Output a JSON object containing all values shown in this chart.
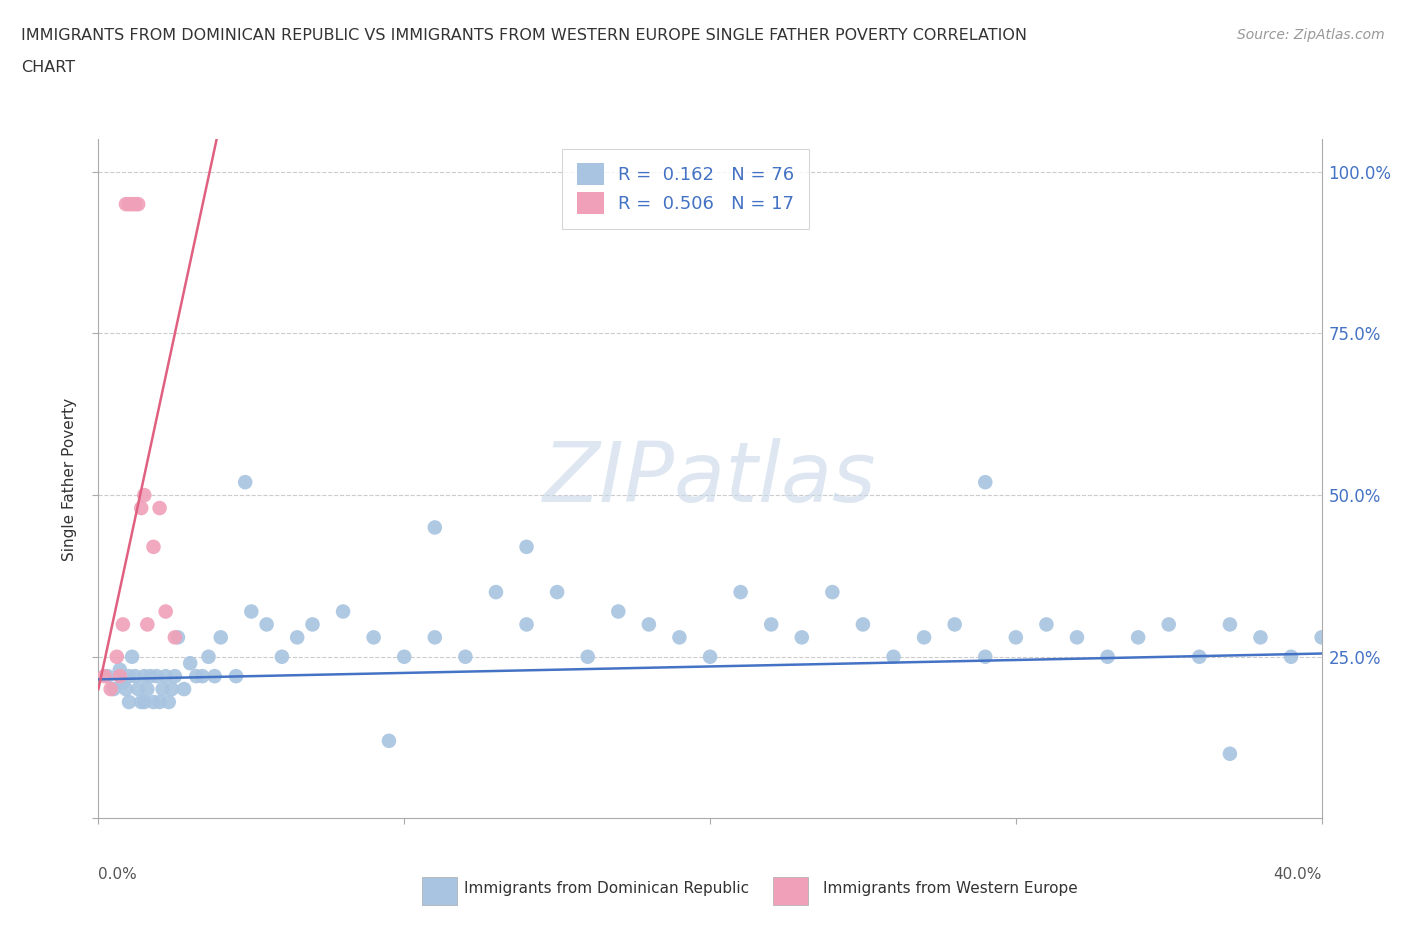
{
  "title_line1": "IMMIGRANTS FROM DOMINICAN REPUBLIC VS IMMIGRANTS FROM WESTERN EUROPE SINGLE FATHER POVERTY CORRELATION",
  "title_line2": "CHART",
  "source": "Source: ZipAtlas.com",
  "ylabel": "Single Father Poverty",
  "xlabel_blue": "Immigrants from Dominican Republic",
  "xlabel_pink": "Immigrants from Western Europe",
  "xlim": [
    0.0,
    0.4
  ],
  "ylim": [
    0.0,
    1.05
  ],
  "R_blue": 0.162,
  "N_blue": 76,
  "R_pink": 0.506,
  "N_pink": 17,
  "blue_color": "#a8c4e0",
  "pink_color": "#f0a0b8",
  "line_blue": "#4472c4",
  "line_pink": "#e06080",
  "blue_line_intercept": 0.215,
  "blue_line_slope": 0.1,
  "pink_line_intercept": 0.2,
  "pink_line_slope": 22.0,
  "blue_scatter_x": [
    0.003,
    0.005,
    0.007,
    0.008,
    0.009,
    0.01,
    0.01,
    0.011,
    0.012,
    0.013,
    0.014,
    0.015,
    0.015,
    0.016,
    0.017,
    0.018,
    0.019,
    0.02,
    0.021,
    0.022,
    0.023,
    0.024,
    0.025,
    0.026,
    0.028,
    0.03,
    0.032,
    0.034,
    0.036,
    0.038,
    0.04,
    0.045,
    0.05,
    0.055,
    0.06,
    0.065,
    0.07,
    0.08,
    0.09,
    0.1,
    0.11,
    0.12,
    0.13,
    0.14,
    0.15,
    0.16,
    0.17,
    0.18,
    0.19,
    0.2,
    0.21,
    0.22,
    0.23,
    0.24,
    0.25,
    0.26,
    0.27,
    0.28,
    0.29,
    0.3,
    0.31,
    0.32,
    0.33,
    0.34,
    0.35,
    0.36,
    0.37,
    0.38,
    0.39,
    0.4,
    0.048,
    0.11,
    0.14,
    0.29,
    0.37,
    0.095
  ],
  "blue_scatter_y": [
    0.22,
    0.2,
    0.23,
    0.21,
    0.2,
    0.22,
    0.18,
    0.25,
    0.22,
    0.2,
    0.18,
    0.22,
    0.18,
    0.2,
    0.22,
    0.18,
    0.22,
    0.18,
    0.2,
    0.22,
    0.18,
    0.2,
    0.22,
    0.28,
    0.2,
    0.24,
    0.22,
    0.22,
    0.25,
    0.22,
    0.28,
    0.22,
    0.32,
    0.3,
    0.25,
    0.28,
    0.3,
    0.32,
    0.28,
    0.25,
    0.28,
    0.25,
    0.35,
    0.3,
    0.35,
    0.25,
    0.32,
    0.3,
    0.28,
    0.25,
    0.35,
    0.3,
    0.28,
    0.35,
    0.3,
    0.25,
    0.28,
    0.3,
    0.25,
    0.28,
    0.3,
    0.28,
    0.25,
    0.28,
    0.3,
    0.25,
    0.3,
    0.28,
    0.25,
    0.28,
    0.52,
    0.45,
    0.42,
    0.52,
    0.1,
    0.12
  ],
  "pink_scatter_x": [
    0.002,
    0.004,
    0.006,
    0.007,
    0.008,
    0.009,
    0.01,
    0.011,
    0.012,
    0.013,
    0.014,
    0.015,
    0.016,
    0.018,
    0.02,
    0.022,
    0.025
  ],
  "pink_scatter_y": [
    0.22,
    0.2,
    0.25,
    0.22,
    0.3,
    0.95,
    0.95,
    0.95,
    0.95,
    0.95,
    0.48,
    0.5,
    0.3,
    0.42,
    0.48,
    0.32,
    0.28
  ]
}
